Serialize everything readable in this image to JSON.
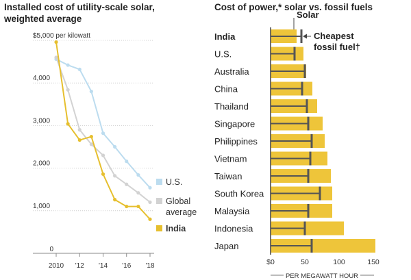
{
  "chart_data": [
    {
      "type": "line",
      "title": "Installed cost of utility-scale solar, weighted average",
      "ylabel": "$5,000 per kilowatt",
      "ylim": [
        0,
        5000
      ],
      "xlim": [
        2010,
        2018
      ],
      "y_ticks": [
        {
          "value": 5000,
          "label": ""
        },
        {
          "value": 4000,
          "label": "4,000"
        },
        {
          "value": 3000,
          "label": "3,000"
        },
        {
          "value": 2000,
          "label": "2,000"
        },
        {
          "value": 1000,
          "label": "1,000"
        },
        {
          "value": 0,
          "label": "0"
        }
      ],
      "x_ticks": [
        {
          "value": 2010,
          "label": "2010"
        },
        {
          "value": 2012,
          "label": "'12"
        },
        {
          "value": 2014,
          "label": "'14"
        },
        {
          "value": 2016,
          "label": "'16"
        },
        {
          "value": 2018,
          "label": "'18"
        }
      ],
      "grid": true,
      "legend_position": "right",
      "series": [
        {
          "name": "U.S.",
          "color": "#bcdcef",
          "x": [
            2010,
            2011,
            2012,
            2013,
            2014,
            2015,
            2016,
            2017,
            2018
          ],
          "values": [
            4560,
            4420,
            4320,
            3800,
            2820,
            2500,
            2160,
            1840,
            1540
          ]
        },
        {
          "name": "Global average",
          "color": "#d2d2d2",
          "x": [
            2010,
            2011,
            2012,
            2013,
            2014,
            2015,
            2016,
            2017,
            2018
          ],
          "values": [
            4600,
            3840,
            2900,
            2560,
            2300,
            1820,
            1620,
            1420,
            1200
          ]
        },
        {
          "name": "India",
          "color": "#e6bf2e",
          "x": [
            2010,
            2011,
            2012,
            2013,
            2014,
            2015,
            2016,
            2017,
            2018
          ],
          "values": [
            4960,
            3040,
            2660,
            2740,
            1860,
            1260,
            1100,
            1100,
            800
          ]
        }
      ]
    },
    {
      "type": "bar",
      "title": "Cost of power,* solar vs. fossil fuels",
      "xlabel": "PER MEGAWATT HOUR",
      "xlim": [
        0,
        150
      ],
      "x_ticks": [
        {
          "value": 0,
          "label": "$0"
        },
        {
          "value": 50,
          "label": "50"
        },
        {
          "value": 100,
          "label": "100"
        },
        {
          "value": 150,
          "label": "150"
        }
      ],
      "annotations": {
        "solar": "Solar",
        "fossil": "Cheapest fossil fuel†"
      },
      "solar_color": "#eec53a",
      "fossil_color": "#555555",
      "categories": [
        "India",
        "U.S.",
        "Australia",
        "China",
        "Thailand",
        "Singapore",
        "Philippines",
        "Vietnam",
        "Taiwan",
        "South Korea",
        "Malaysia",
        "Indonesia",
        "Japan"
      ],
      "series": [
        {
          "name": "Solar",
          "values": [
            38,
            48,
            52,
            61,
            68,
            76,
            79,
            83,
            88,
            90,
            90,
            107,
            153
          ]
        },
        {
          "name": "Cheapest fossil fuel†",
          "values": [
            45,
            35,
            50,
            46,
            53,
            55,
            60,
            58,
            55,
            72,
            55,
            50,
            60
          ]
        }
      ]
    }
  ]
}
